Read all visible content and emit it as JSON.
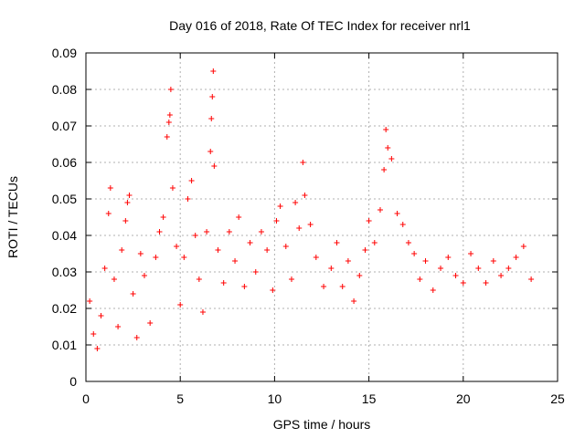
{
  "chart_data": {
    "type": "scatter",
    "title": "Day 016 of 2018, Rate Of TEC Index for receiver nrl1",
    "xlabel": "GPS time / hours",
    "ylabel": "ROTI / TECUs",
    "xlim": [
      0,
      25
    ],
    "ylim": [
      0,
      0.09
    ],
    "x_ticks": [
      0,
      5,
      10,
      15,
      20,
      25
    ],
    "x_tick_labels": [
      "0",
      "5",
      "10",
      "15",
      "20",
      "25"
    ],
    "y_ticks": [
      0,
      0.01,
      0.02,
      0.03,
      0.04,
      0.05,
      0.06,
      0.07,
      0.08,
      0.09
    ],
    "y_tick_labels": [
      "0",
      "0.01",
      "0.02",
      "0.03",
      "0.04",
      "0.05",
      "0.06",
      "0.07",
      "0.08",
      "0.09"
    ],
    "grid": true,
    "marker": "+",
    "color": "#ff0000",
    "series": [
      {
        "name": "ROTI",
        "points": [
          [
            0.2,
            0.022
          ],
          [
            0.4,
            0.013
          ],
          [
            0.6,
            0.009
          ],
          [
            0.8,
            0.018
          ],
          [
            1.0,
            0.031
          ],
          [
            1.2,
            0.046
          ],
          [
            1.3,
            0.053
          ],
          [
            1.5,
            0.028
          ],
          [
            1.7,
            0.015
          ],
          [
            1.9,
            0.036
          ],
          [
            2.1,
            0.044
          ],
          [
            2.2,
            0.049
          ],
          [
            2.3,
            0.051
          ],
          [
            2.5,
            0.024
          ],
          [
            2.7,
            0.012
          ],
          [
            2.9,
            0.035
          ],
          [
            3.1,
            0.029
          ],
          [
            3.4,
            0.016
          ],
          [
            3.7,
            0.034
          ],
          [
            3.9,
            0.041
          ],
          [
            4.1,
            0.045
          ],
          [
            4.3,
            0.067
          ],
          [
            4.4,
            0.071
          ],
          [
            4.45,
            0.073
          ],
          [
            4.5,
            0.08
          ],
          [
            4.6,
            0.053
          ],
          [
            4.8,
            0.037
          ],
          [
            5.0,
            0.021
          ],
          [
            5.2,
            0.034
          ],
          [
            5.4,
            0.05
          ],
          [
            5.6,
            0.055
          ],
          [
            5.8,
            0.04
          ],
          [
            6.0,
            0.028
          ],
          [
            6.2,
            0.019
          ],
          [
            6.4,
            0.041
          ],
          [
            6.6,
            0.063
          ],
          [
            6.65,
            0.072
          ],
          [
            6.7,
            0.078
          ],
          [
            6.75,
            0.085
          ],
          [
            6.8,
            0.059
          ],
          [
            7.0,
            0.036
          ],
          [
            7.3,
            0.027
          ],
          [
            7.6,
            0.041
          ],
          [
            7.9,
            0.033
          ],
          [
            8.1,
            0.045
          ],
          [
            8.4,
            0.026
          ],
          [
            8.7,
            0.038
          ],
          [
            9.0,
            0.03
          ],
          [
            9.3,
            0.041
          ],
          [
            9.6,
            0.036
          ],
          [
            9.9,
            0.025
          ],
          [
            10.1,
            0.044
          ],
          [
            10.3,
            0.048
          ],
          [
            10.6,
            0.037
          ],
          [
            10.9,
            0.028
          ],
          [
            11.1,
            0.049
          ],
          [
            11.3,
            0.042
          ],
          [
            11.5,
            0.06
          ],
          [
            11.6,
            0.051
          ],
          [
            11.9,
            0.043
          ],
          [
            12.2,
            0.034
          ],
          [
            12.6,
            0.026
          ],
          [
            13.0,
            0.031
          ],
          [
            13.3,
            0.038
          ],
          [
            13.6,
            0.026
          ],
          [
            13.9,
            0.033
          ],
          [
            14.2,
            0.022
          ],
          [
            14.5,
            0.029
          ],
          [
            14.8,
            0.036
          ],
          [
            15.0,
            0.044
          ],
          [
            15.3,
            0.038
          ],
          [
            15.6,
            0.047
          ],
          [
            15.8,
            0.058
          ],
          [
            15.9,
            0.069
          ],
          [
            16.0,
            0.064
          ],
          [
            16.2,
            0.061
          ],
          [
            16.5,
            0.046
          ],
          [
            16.8,
            0.043
          ],
          [
            17.1,
            0.038
          ],
          [
            17.4,
            0.035
          ],
          [
            17.7,
            0.028
          ],
          [
            18.0,
            0.033
          ],
          [
            18.4,
            0.025
          ],
          [
            18.8,
            0.031
          ],
          [
            19.2,
            0.034
          ],
          [
            19.6,
            0.029
          ],
          [
            20.0,
            0.027
          ],
          [
            20.4,
            0.035
          ],
          [
            20.8,
            0.031
          ],
          [
            21.2,
            0.027
          ],
          [
            21.6,
            0.033
          ],
          [
            22.0,
            0.029
          ],
          [
            22.4,
            0.031
          ],
          [
            22.8,
            0.034
          ],
          [
            23.2,
            0.037
          ],
          [
            23.6,
            0.028
          ]
        ]
      }
    ]
  }
}
